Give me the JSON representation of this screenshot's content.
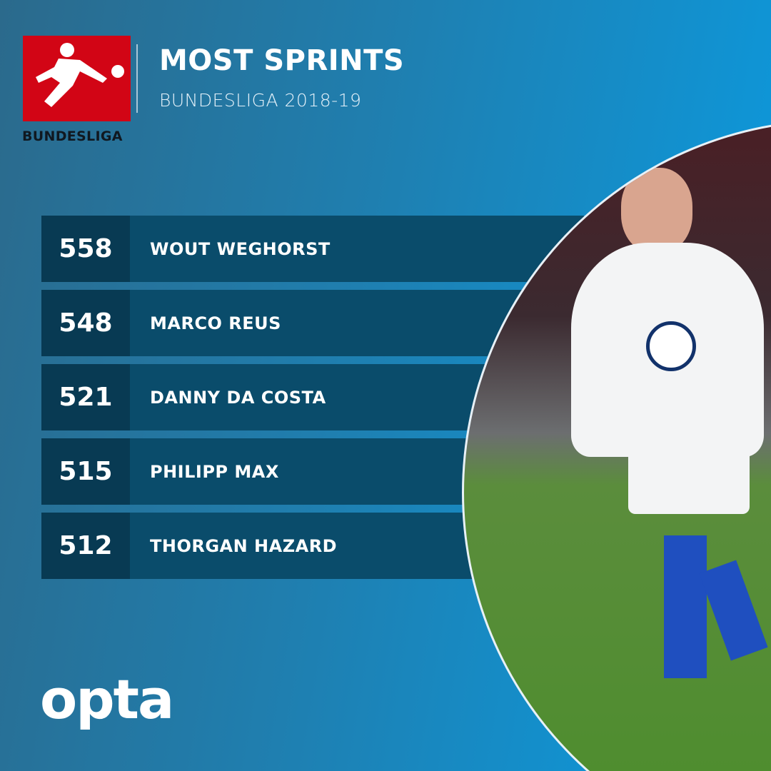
{
  "header": {
    "logo_text": "BUNDESLIGA",
    "title": "MOST SPRINTS",
    "subtitle": "BUNDESLIGA 2018-19"
  },
  "ranking": [
    {
      "value": "558",
      "player": "WOUT WEGHORST"
    },
    {
      "value": "548",
      "player": "MARCO REUS"
    },
    {
      "value": "521",
      "player": "DANNY DA COSTA"
    },
    {
      "value": "515",
      "player": "PHILIPP MAX"
    },
    {
      "value": "512",
      "player": "THORGAN HAZARD"
    }
  ],
  "footer": {
    "brand": "opta"
  },
  "colors": {
    "logo_red": "#d20515",
    "row_bg": "#0a4c6b",
    "value_bg": "#083a53"
  }
}
